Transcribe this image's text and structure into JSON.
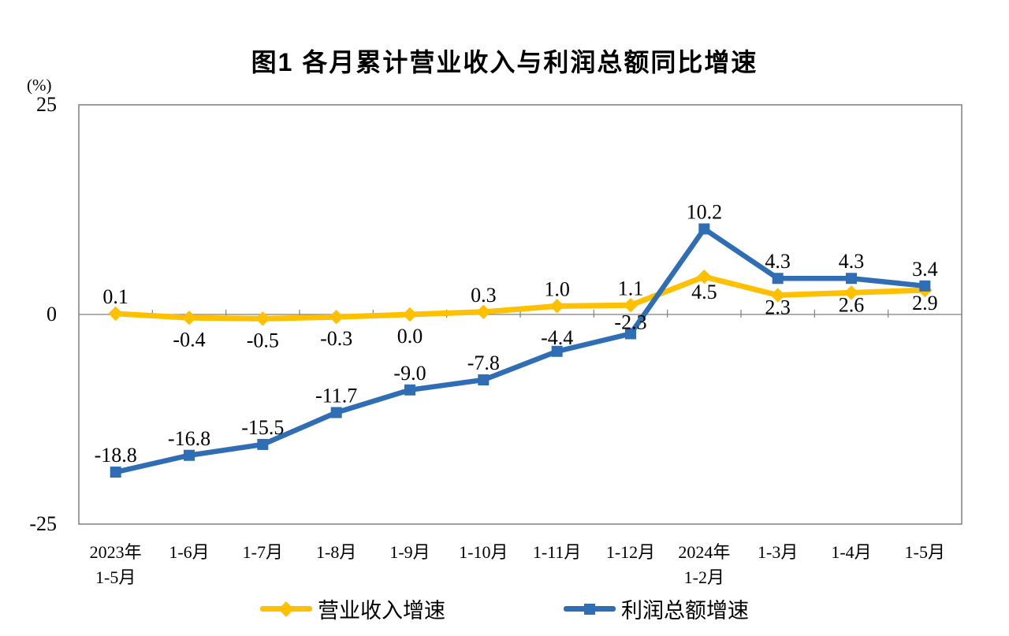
{
  "page": {
    "background": "#ffffff"
  },
  "chart_data": {
    "type": "line",
    "title": "图1 各月累计营业收入与利润总额同比增速",
    "unit_label": "(%)",
    "categories": [
      [
        "2023年",
        "1-5月"
      ],
      [
        "1-6月"
      ],
      [
        "1-7月"
      ],
      [
        "1-8月"
      ],
      [
        "1-9月"
      ],
      [
        "1-10月"
      ],
      [
        "1-11月"
      ],
      [
        "1-12月"
      ],
      [
        "2024年",
        "1-2月"
      ],
      [
        "1-3月"
      ],
      [
        "1-4月"
      ],
      [
        "1-5月"
      ]
    ],
    "series": [
      {
        "name": "营业收入增速",
        "color": "#FFC000",
        "marker": "diamond",
        "values": [
          0.1,
          -0.4,
          -0.5,
          -0.3,
          0.0,
          0.3,
          1.0,
          1.1,
          4.5,
          2.3,
          2.6,
          2.9
        ],
        "labels": [
          "0.1",
          "-0.4",
          "-0.5",
          "-0.3",
          "0.0",
          "0.3",
          "1.0",
          "1.1",
          "4.5",
          "2.3",
          "2.6",
          "2.9"
        ],
        "label_placement": [
          "above",
          "below",
          "below",
          "below",
          "below",
          "above",
          "above",
          "above",
          "below:28",
          "below:24",
          "below:24",
          "below:25"
        ]
      },
      {
        "name": "利润总额增速",
        "color": "#2F6DB4",
        "marker": "square",
        "values": [
          -18.8,
          -16.8,
          -15.5,
          -11.7,
          -9.0,
          -7.8,
          -4.4,
          -2.3,
          10.2,
          4.3,
          4.3,
          3.4
        ],
        "labels": [
          "-18.8",
          "-16.8",
          "-15.5",
          "-11.7",
          "-9.0",
          "-7.8",
          "-4.4",
          "-2.3",
          "10.2",
          "4.3",
          "4.3",
          "3.4"
        ],
        "label_placement": [
          "above",
          "above",
          "above",
          "above",
          "above",
          "above",
          "above:-9",
          "above:-6",
          "above",
          "above",
          "above",
          "above"
        ]
      }
    ],
    "ylim": [
      -25,
      25
    ],
    "y_ticks": [
      25,
      0,
      -25
    ],
    "grid": false,
    "legend_position": "bottom"
  }
}
